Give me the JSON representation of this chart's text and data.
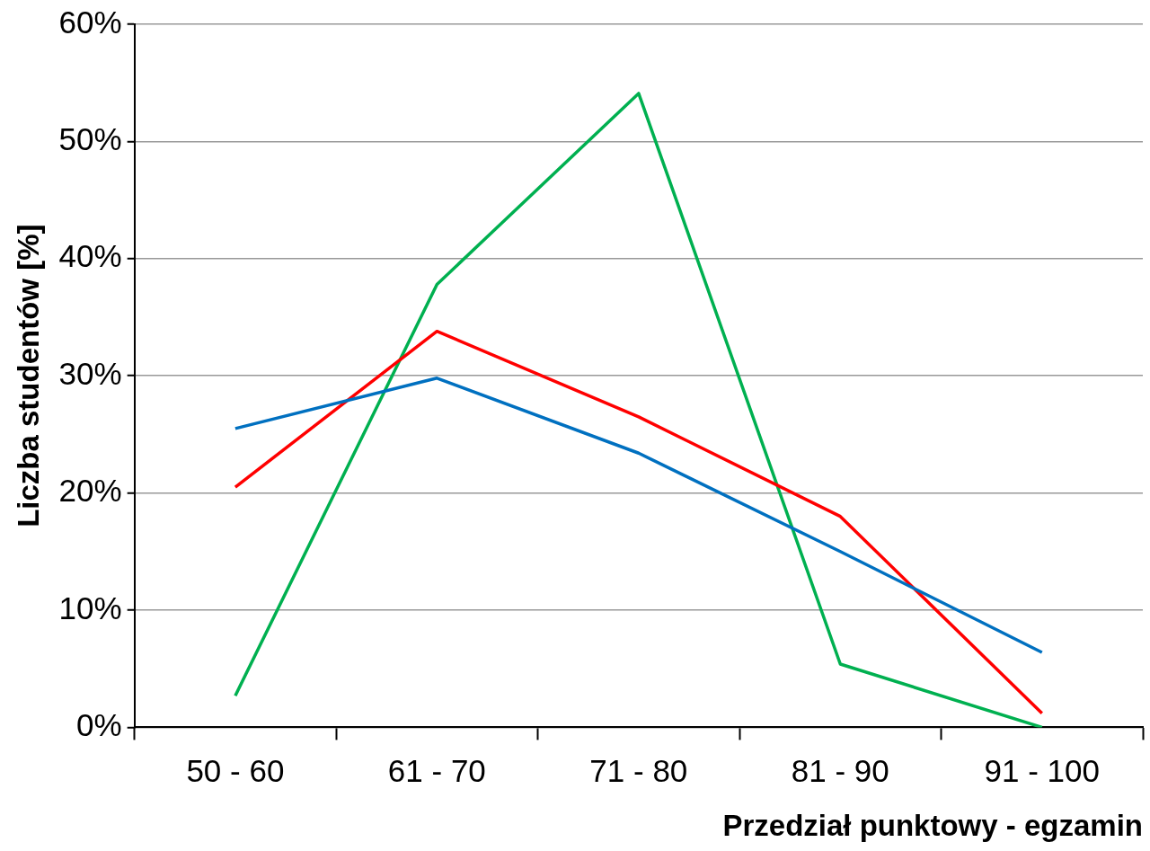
{
  "chart_data": {
    "type": "line",
    "xlabel": "Przedział punktowy - egzamin",
    "ylabel": "Liczba studentów [%]",
    "categories": [
      "50 - 60",
      "61 - 70",
      "71 - 80",
      "81 - 90",
      "91 - 100"
    ],
    "series": [
      {
        "color": "#0070c0",
        "values": [
          25.5,
          29.8,
          23.4,
          15.0,
          6.4
        ]
      },
      {
        "color": "#ff0000",
        "values": [
          20.5,
          33.8,
          26.5,
          18.0,
          1.2
        ]
      },
      {
        "color": "#00b050",
        "values": [
          2.7,
          37.8,
          54.1,
          5.4,
          0
        ]
      }
    ],
    "ylim": [
      0,
      60
    ],
    "yticks": [
      {
        "value": 0,
        "label": "0%"
      },
      {
        "value": 10,
        "label": "10%"
      },
      {
        "value": 20,
        "label": "20%"
      },
      {
        "value": 30,
        "label": "30%"
      },
      {
        "value": 40,
        "label": "40%"
      },
      {
        "value": 50,
        "label": "50%"
      },
      {
        "value": 60,
        "label": "60%"
      }
    ],
    "grid": "y",
    "marker": "none",
    "line_style": "solid",
    "legend": false
  }
}
